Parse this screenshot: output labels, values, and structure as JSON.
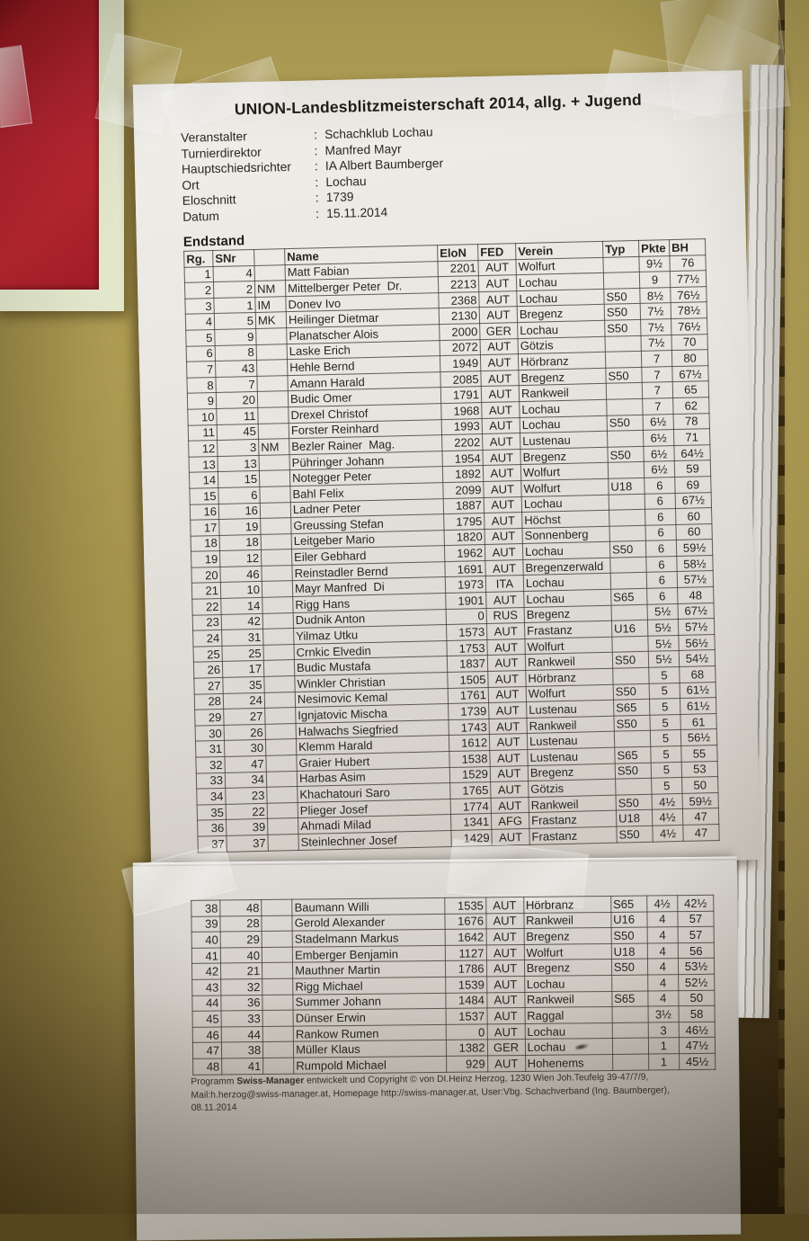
{
  "colors": {
    "wall": "#a9974f",
    "wall_dark_bottom": "#655425",
    "poster_red": "#b22330",
    "poster_border": "#e2e7cc",
    "paper": "#eae7e2",
    "paper_shadow_bottom": "#a39f95",
    "ink": "#28251f"
  },
  "document": {
    "title": "UNION-Landesblitzmeisterschaft 2014, allg. + Jugend",
    "meta": {
      "separator": ":",
      "items": [
        {
          "label": "Veranstalter",
          "value": "Schachklub Lochau"
        },
        {
          "label": "Turnierdirektor",
          "value": "Manfred Mayr"
        },
        {
          "label": "Hauptschiedsrichter",
          "value": "IA Albert Baumberger"
        },
        {
          "label": "Ort",
          "value": "Lochau"
        },
        {
          "label": "Eloschnitt",
          "value": "1739"
        },
        {
          "label": "Datum",
          "value": "15.11.2014"
        }
      ]
    },
    "section_heading": "Endstand",
    "table": {
      "columns": [
        "Rg.",
        "SNr",
        "",
        "Name",
        "EloN",
        "FED",
        "Verein",
        "Typ",
        "Pkte",
        "BH"
      ],
      "rows_page1": [
        [
          "1",
          "4",
          "",
          "Matt Fabian",
          "2201",
          "AUT",
          "Wolfurt",
          "",
          "9½",
          "76"
        ],
        [
          "2",
          "2",
          "NM",
          "Mittelberger Peter  Dr.",
          "2213",
          "AUT",
          "Lochau",
          "",
          "9",
          "77½"
        ],
        [
          "3",
          "1",
          "IM",
          "Donev Ivo",
          "2368",
          "AUT",
          "Lochau",
          "S50",
          "8½",
          "76½"
        ],
        [
          "4",
          "5",
          "MK",
          "Heilinger Dietmar",
          "2130",
          "AUT",
          "Bregenz",
          "S50",
          "7½",
          "78½"
        ],
        [
          "5",
          "9",
          "",
          "Planatscher Alois",
          "2000",
          "GER",
          "Lochau",
          "S50",
          "7½",
          "76½"
        ],
        [
          "6",
          "8",
          "",
          "Laske Erich",
          "2072",
          "AUT",
          "Götzis",
          "",
          "7½",
          "70"
        ],
        [
          "7",
          "43",
          "",
          "Hehle Bernd",
          "1949",
          "AUT",
          "Hörbranz",
          "",
          "7",
          "80"
        ],
        [
          "8",
          "7",
          "",
          "Amann Harald",
          "2085",
          "AUT",
          "Bregenz",
          "S50",
          "7",
          "67½"
        ],
        [
          "9",
          "20",
          "",
          "Budic Omer",
          "1791",
          "AUT",
          "Rankweil",
          "",
          "7",
          "65"
        ],
        [
          "10",
          "11",
          "",
          "Drexel Christof",
          "1968",
          "AUT",
          "Lochau",
          "",
          "7",
          "62"
        ],
        [
          "11",
          "45",
          "",
          "Forster Reinhard",
          "1993",
          "AUT",
          "Lochau",
          "S50",
          "6½",
          "78"
        ],
        [
          "12",
          "3",
          "NM",
          "Bezler Rainer  Mag.",
          "2202",
          "AUT",
          "Lustenau",
          "",
          "6½",
          "71"
        ],
        [
          "13",
          "13",
          "",
          "Pühringer Johann",
          "1954",
          "AUT",
          "Bregenz",
          "S50",
          "6½",
          "64½"
        ],
        [
          "14",
          "15",
          "",
          "Notegger Peter",
          "1892",
          "AUT",
          "Wolfurt",
          "",
          "6½",
          "59"
        ],
        [
          "15",
          "6",
          "",
          "Bahl Felix",
          "2099",
          "AUT",
          "Wolfurt",
          "U18",
          "6",
          "69"
        ],
        [
          "16",
          "16",
          "",
          "Ladner Peter",
          "1887",
          "AUT",
          "Lochau",
          "",
          "6",
          "67½"
        ],
        [
          "17",
          "19",
          "",
          "Greussing Stefan",
          "1795",
          "AUT",
          "Höchst",
          "",
          "6",
          "60"
        ],
        [
          "18",
          "18",
          "",
          "Leitgeber Mario",
          "1820",
          "AUT",
          "Sonnenberg",
          "",
          "6",
          "60"
        ],
        [
          "19",
          "12",
          "",
          "Eiler Gebhard",
          "1962",
          "AUT",
          "Lochau",
          "S50",
          "6",
          "59½"
        ],
        [
          "20",
          "46",
          "",
          "Reinstadler Bernd",
          "1691",
          "AUT",
          "Bregenzerwald",
          "",
          "6",
          "58½"
        ],
        [
          "21",
          "10",
          "",
          "Mayr Manfred  Di",
          "1973",
          "ITA",
          "Lochau",
          "",
          "6",
          "57½"
        ],
        [
          "22",
          "14",
          "",
          "Rigg Hans",
          "1901",
          "AUT",
          "Lochau",
          "S65",
          "6",
          "48"
        ],
        [
          "23",
          "42",
          "",
          "Dudnik Anton",
          "0",
          "RUS",
          "Bregenz",
          "",
          "5½",
          "67½"
        ],
        [
          "24",
          "31",
          "",
          "Yilmaz Utku",
          "1573",
          "AUT",
          "Frastanz",
          "U16",
          "5½",
          "57½"
        ],
        [
          "25",
          "25",
          "",
          "Crnkic Elvedin",
          "1753",
          "AUT",
          "Wolfurt",
          "",
          "5½",
          "56½"
        ],
        [
          "26",
          "17",
          "",
          "Budic Mustafa",
          "1837",
          "AUT",
          "Rankweil",
          "S50",
          "5½",
          "54½"
        ],
        [
          "27",
          "35",
          "",
          "Winkler Christian",
          "1505",
          "AUT",
          "Hörbranz",
          "",
          "5",
          "68"
        ],
        [
          "28",
          "24",
          "",
          "Nesimovic Kemal",
          "1761",
          "AUT",
          "Wolfurt",
          "S50",
          "5",
          "61½"
        ],
        [
          "29",
          "27",
          "",
          "Ignjatovic Mischa",
          "1739",
          "AUT",
          "Lustenau",
          "S65",
          "5",
          "61½"
        ],
        [
          "30",
          "26",
          "",
          "Halwachs Siegfried",
          "1743",
          "AUT",
          "Rankweil",
          "S50",
          "5",
          "61"
        ],
        [
          "31",
          "30",
          "",
          "Klemm Harald",
          "1612",
          "AUT",
          "Lustenau",
          "",
          "5",
          "56½"
        ],
        [
          "32",
          "47",
          "",
          "Graier Hubert",
          "1538",
          "AUT",
          "Lustenau",
          "S65",
          "5",
          "55"
        ],
        [
          "33",
          "34",
          "",
          "Harbas Asim",
          "1529",
          "AUT",
          "Bregenz",
          "S50",
          "5",
          "53"
        ],
        [
          "34",
          "23",
          "",
          "Khachatouri Saro",
          "1765",
          "AUT",
          "Götzis",
          "",
          "5",
          "50"
        ],
        [
          "35",
          "22",
          "",
          "Plieger Josef",
          "1774",
          "AUT",
          "Rankweil",
          "S50",
          "4½",
          "59½"
        ],
        [
          "36",
          "39",
          "",
          "Ahmadi Milad",
          "1341",
          "AFG",
          "Frastanz",
          "U18",
          "4½",
          "47"
        ],
        [
          "37",
          "37",
          "",
          "Steinlechner Josef",
          "1429",
          "AUT",
          "Frastanz",
          "S50",
          "4½",
          "47"
        ]
      ],
      "rows_page2": [
        [
          "38",
          "48",
          "",
          "Baumann Willi",
          "1535",
          "AUT",
          "Hörbranz",
          "S65",
          "4½",
          "42½"
        ],
        [
          "39",
          "28",
          "",
          "Gerold Alexander",
          "1676",
          "AUT",
          "Rankweil",
          "U16",
          "4",
          "57"
        ],
        [
          "40",
          "29",
          "",
          "Stadelmann Markus",
          "1642",
          "AUT",
          "Bregenz",
          "S50",
          "4",
          "57"
        ],
        [
          "41",
          "40",
          "",
          "Emberger Benjamin",
          "1127",
          "AUT",
          "Wolfurt",
          "U18",
          "4",
          "56"
        ],
        [
          "42",
          "21",
          "",
          "Mauthner Martin",
          "1786",
          "AUT",
          "Bregenz",
          "S50",
          "4",
          "53½"
        ],
        [
          "43",
          "32",
          "",
          "Rigg Michael",
          "1539",
          "AUT",
          "Lochau",
          "",
          "4",
          "52½"
        ],
        [
          "44",
          "36",
          "",
          "Summer Johann",
          "1484",
          "AUT",
          "Rankweil",
          "S65",
          "4",
          "50"
        ],
        [
          "45",
          "33",
          "",
          "Dünser Erwin",
          "1537",
          "AUT",
          "Raggal",
          "",
          "3½",
          "58"
        ],
        [
          "46",
          "44",
          "",
          "Rankow Rumen",
          "0",
          "AUT",
          "Lochau",
          "",
          "3",
          "46½"
        ],
        [
          "47",
          "38",
          "",
          "Müller Klaus",
          "1382",
          "GER",
          "Lochau",
          "",
          "1",
          "47½"
        ],
        [
          "48",
          "41",
          "",
          "Rumpold Michael",
          "929",
          "AUT",
          "Hohenems",
          "",
          "1",
          "45½"
        ]
      ]
    },
    "footer": {
      "line1_parts": [
        "Programm ",
        "Swiss-Manager",
        "  entwickelt und Copyright © von DI.Heinz Herzog, 1230 Wien Joh.Teufelg 39-47/7/9,"
      ],
      "line2": "Mail:h.herzog@swiss-manager.at, Homepage http://swiss-manager.at, User:Vbg. Schachverband (Ing. Baumberger), 08.11.2014"
    }
  }
}
